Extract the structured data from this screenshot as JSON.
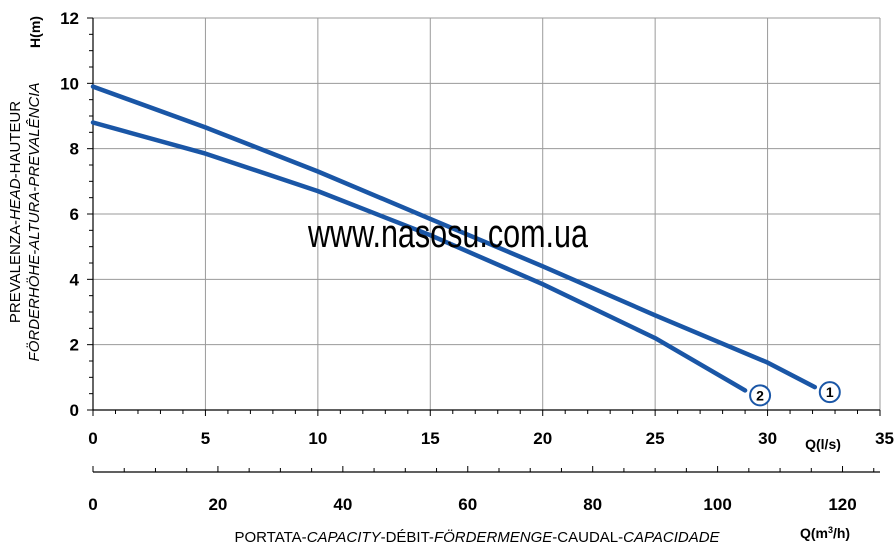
{
  "watermark": "www.nasosu.com.ua",
  "chart_data": {
    "type": "line",
    "y_axis": {
      "unit_label": "H(m)",
      "title_line1_parts": [
        {
          "text": "PREVALENZA-",
          "italic": false
        },
        {
          "text": "HEAD",
          "italic": true
        },
        {
          "text": "-HAUTEUR",
          "italic": false
        }
      ],
      "title_line2_parts": [
        {
          "text": "FÖRDERHÖHE-ALTURA-PREVALÊNCIA",
          "italic": true
        }
      ],
      "ylim": [
        0,
        12
      ],
      "ticks": [
        0,
        2,
        4,
        6,
        8,
        10,
        12
      ]
    },
    "x_axis_primary": {
      "unit_label": "Q(l/s)",
      "xlim": [
        0,
        35
      ],
      "ticks": [
        0,
        5,
        10,
        15,
        20,
        25,
        30,
        35
      ]
    },
    "x_axis_secondary": {
      "unit_label_parts": [
        {
          "text": "Q(m",
          "sup": false
        },
        {
          "text": "3",
          "sup": true
        },
        {
          "text": "/h)",
          "sup": false
        }
      ],
      "xlim": [
        0,
        126
      ],
      "ticks": [
        0,
        20,
        40,
        60,
        80,
        100,
        120
      ],
      "title_parts": [
        {
          "text": "PORTATA-",
          "italic": false
        },
        {
          "text": "CAPACITY",
          "italic": true
        },
        {
          "text": "-DÉBIT-",
          "italic": false
        },
        {
          "text": "FÖRDERMENGE",
          "italic": true
        },
        {
          "text": "-CAUDAL-",
          "italic": false
        },
        {
          "text": "CAPACIDADE",
          "italic": true
        }
      ]
    },
    "grid": true,
    "line_color": "#1a56a6",
    "series": [
      {
        "label": "1",
        "points": [
          [
            0,
            9.9
          ],
          [
            5,
            8.65
          ],
          [
            10,
            7.3
          ],
          [
            15,
            5.85
          ],
          [
            20,
            4.4
          ],
          [
            25,
            2.9
          ],
          [
            30,
            1.45
          ],
          [
            32.1,
            0.7
          ]
        ]
      },
      {
        "label": "2",
        "points": [
          [
            0,
            8.8
          ],
          [
            5,
            7.85
          ],
          [
            10,
            6.7
          ],
          [
            15,
            5.35
          ],
          [
            20,
            3.85
          ],
          [
            25,
            2.2
          ],
          [
            29,
            0.6
          ]
        ]
      }
    ]
  }
}
